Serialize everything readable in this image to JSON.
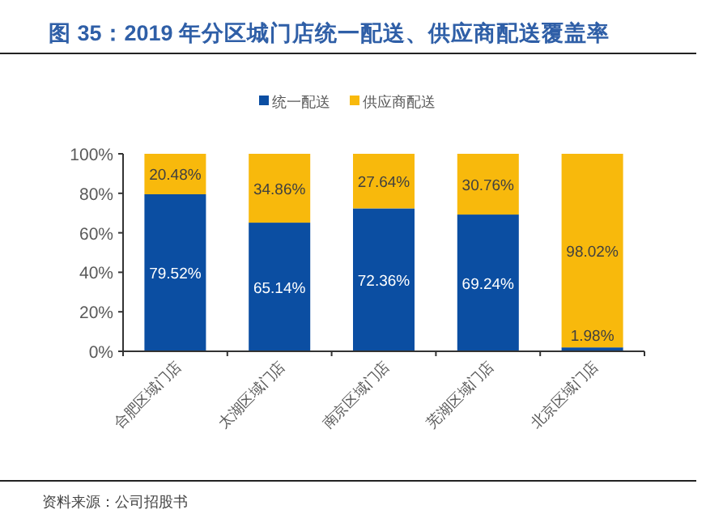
{
  "chart_data": {
    "type": "bar",
    "title": "图 35：2019 年分区城门店统一配送、供应商配送覆盖率",
    "categories": [
      "合肥区域门店",
      "太湖区域门店",
      "南京区域门店",
      "芜湖区域门店",
      "北京区域门店"
    ],
    "stacked": true,
    "legend": "top",
    "ylim": [
      0,
      100
    ],
    "yticks": [
      {
        "value": 0,
        "label": "0%"
      },
      {
        "value": 20,
        "label": "20%"
      },
      {
        "value": 40,
        "label": "40%"
      },
      {
        "value": 60,
        "label": "60%"
      },
      {
        "value": 80,
        "label": "80%"
      },
      {
        "value": 100,
        "label": "100%"
      }
    ],
    "series": [
      {
        "name": "统一配送",
        "color": "#0b4ea2",
        "values": [
          79.52,
          65.14,
          72.36,
          69.24,
          1.98
        ],
        "value_labels": [
          "79.52%",
          "65.14%",
          "72.36%",
          "69.24%",
          "1.98%"
        ]
      },
      {
        "name": "供应商配送",
        "color": "#f8b90c",
        "values": [
          20.48,
          34.86,
          27.64,
          30.76,
          98.02
        ],
        "value_labels": [
          "20.48%",
          "34.86%",
          "27.64%",
          "30.76%",
          "98.02%"
        ]
      }
    ],
    "annotations": [
      "资料来源：公司招股书"
    ]
  }
}
